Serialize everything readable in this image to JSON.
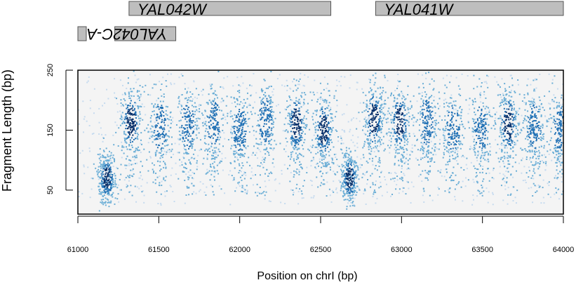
{
  "chart_data": {
    "type": "scatter",
    "title": "",
    "xlabel": "Position on  chrI (bp)",
    "ylabel": "Fragment Length (bp)",
    "xlim": [
      61000,
      64000
    ],
    "ylim": [
      10,
      250
    ],
    "xticks": [
      61000,
      61500,
      62000,
      62500,
      63000,
      63500,
      64000
    ],
    "xtick_labels": [
      "61000",
      "61500",
      "62000",
      "62500",
      "63000",
      "63500",
      "64000"
    ],
    "yticks": [
      50,
      150,
      250
    ],
    "ytick_labels": [
      "50",
      "150",
      "250"
    ],
    "grid": false,
    "legend": "none",
    "panel_background": "#f4f4f4",
    "colors": {
      "gene_box": "#bebebe",
      "point_dark": "#08306b",
      "point_mid": "#2171b5",
      "point_light": "#6baed6",
      "point_pale": "#c6dbef"
    },
    "genes": [
      {
        "name": "YAL042W",
        "start": 61316,
        "end": 62563,
        "strand": "+"
      },
      {
        "name": "YAL041W",
        "start": 62840,
        "end": 64000,
        "strand": "+"
      },
      {
        "name": "YAL042C-A",
        "start": 61000,
        "end": 61052,
        "strand": "-"
      },
      {
        "name": "YAL042C-A",
        "start": 61228,
        "end": 61605,
        "strand": "-"
      }
    ],
    "density_clusters": [
      {
        "x": 61180,
        "y": 70,
        "density": 1.0
      },
      {
        "x": 61330,
        "y": 165,
        "density": 0.85
      },
      {
        "x": 61510,
        "y": 155,
        "density": 0.55
      },
      {
        "x": 61680,
        "y": 157,
        "density": 0.6
      },
      {
        "x": 61840,
        "y": 160,
        "density": 0.6
      },
      {
        "x": 62000,
        "y": 150,
        "density": 0.65
      },
      {
        "x": 62160,
        "y": 165,
        "density": 0.65
      },
      {
        "x": 62350,
        "y": 160,
        "density": 0.8
      },
      {
        "x": 62520,
        "y": 150,
        "density": 0.95
      },
      {
        "x": 62680,
        "y": 70,
        "density": 0.9
      },
      {
        "x": 62830,
        "y": 168,
        "density": 0.9
      },
      {
        "x": 62990,
        "y": 163,
        "density": 0.8
      },
      {
        "x": 63160,
        "y": 163,
        "density": 0.7
      },
      {
        "x": 63320,
        "y": 153,
        "density": 0.6
      },
      {
        "x": 63490,
        "y": 153,
        "density": 0.6
      },
      {
        "x": 63660,
        "y": 160,
        "density": 0.8
      },
      {
        "x": 63820,
        "y": 155,
        "density": 0.7
      },
      {
        "x": 63980,
        "y": 150,
        "density": 0.7
      }
    ]
  }
}
